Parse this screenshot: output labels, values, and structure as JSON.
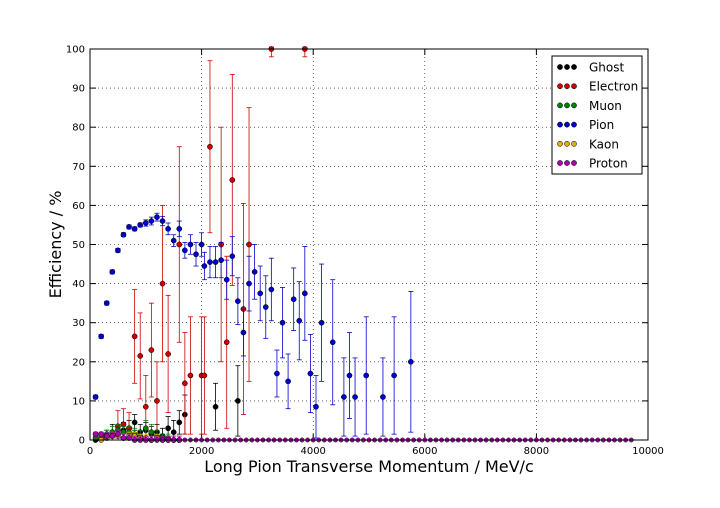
{
  "chart_data": {
    "type": "scatter",
    "title": "",
    "xlabel": "Long Pion Transverse Momentum / MeV/c",
    "ylabel": "Efficiency / %",
    "xlim": [
      0,
      10000
    ],
    "ylim": [
      0,
      100
    ],
    "xticks": [
      0,
      2000,
      4000,
      6000,
      8000,
      10000
    ],
    "yticks": [
      0,
      10,
      20,
      30,
      40,
      50,
      60,
      70,
      80,
      90,
      100
    ],
    "xtick_labels": [
      "0",
      "2000",
      "4000",
      "6000",
      "8000",
      "10000"
    ],
    "ytick_labels": [
      "0",
      "10",
      "20",
      "30",
      "40",
      "50",
      "60",
      "70",
      "80",
      "90",
      "100"
    ],
    "grid": true,
    "legend_position": "top-right",
    "zero_floor": {
      "x_from": 1700,
      "x_to": 9700,
      "x_step": 100
    },
    "series": [
      {
        "name": "Ghost",
        "color": "#000000",
        "points": [
          {
            "x": 100,
            "y": 0,
            "err": 0.5
          },
          {
            "x": 200,
            "y": 0.5,
            "err": 1
          },
          {
            "x": 300,
            "y": 1,
            "err": 1.5
          },
          {
            "x": 400,
            "y": 2,
            "err": 2
          },
          {
            "x": 500,
            "y": 1.5,
            "err": 1.5
          },
          {
            "x": 600,
            "y": 2.5,
            "err": 2
          },
          {
            "x": 700,
            "y": 3,
            "err": 2
          },
          {
            "x": 800,
            "y": 4.5,
            "err": 2
          },
          {
            "x": 900,
            "y": 2,
            "err": 2
          },
          {
            "x": 1000,
            "y": 2.5,
            "err": 2
          },
          {
            "x": 1100,
            "y": 1.5,
            "err": 2
          },
          {
            "x": 1200,
            "y": 2,
            "err": 2
          },
          {
            "x": 1300,
            "y": 1,
            "err": 2
          },
          {
            "x": 1400,
            "y": 3,
            "err": 3
          },
          {
            "x": 1500,
            "y": 2,
            "err": 3
          },
          {
            "x": 1600,
            "y": 4.5,
            "err": 3
          },
          {
            "x": 1700,
            "y": 6.5,
            "err": 5
          },
          {
            "x": 2250,
            "y": 8.5,
            "err": 6
          },
          {
            "x": 2650,
            "y": 10,
            "err": 9
          }
        ]
      },
      {
        "name": "Electron",
        "color": "#cc0000",
        "points": [
          {
            "x": 500,
            "y": 3.5,
            "err": 4
          },
          {
            "x": 600,
            "y": 4,
            "err": 4
          },
          {
            "x": 700,
            "y": 3,
            "err": 4
          },
          {
            "x": 800,
            "y": 26.5,
            "err": 12
          },
          {
            "x": 900,
            "y": 21.5,
            "err": 11
          },
          {
            "x": 1000,
            "y": 8.5,
            "err": 8
          },
          {
            "x": 1100,
            "y": 23,
            "err": 12
          },
          {
            "x": 1200,
            "y": 10,
            "err": 10
          },
          {
            "x": 1300,
            "y": 40,
            "err": 20
          },
          {
            "x": 1400,
            "y": 22,
            "err": 15
          },
          {
            "x": 1600,
            "y": 50,
            "err": 25
          },
          {
            "x": 1700,
            "y": 14.5,
            "err": 13
          },
          {
            "x": 1800,
            "y": 16.5,
            "err": 15
          },
          {
            "x": 2000,
            "y": 16.5,
            "err": 15
          },
          {
            "x": 2050,
            "y": 16.5,
            "err": 15
          },
          {
            "x": 2150,
            "y": 75,
            "err": 22
          },
          {
            "x": 2350,
            "y": 50,
            "err": 30
          },
          {
            "x": 2450,
            "y": 25,
            "err": 22
          },
          {
            "x": 2550,
            "y": 66.5,
            "err": 27
          },
          {
            "x": 2750,
            "y": 33.5,
            "err": 27
          },
          {
            "x": 2850,
            "y": 50,
            "err": 35
          },
          {
            "x": 3250,
            "y": 100,
            "err": 2
          },
          {
            "x": 3850,
            "y": 100,
            "err": 2
          }
        ]
      },
      {
        "name": "Muon",
        "color": "#008000",
        "points": [
          {
            "x": 100,
            "y": 0.5,
            "err": 0.5
          },
          {
            "x": 200,
            "y": 1,
            "err": 1
          },
          {
            "x": 300,
            "y": 1.5,
            "err": 1
          },
          {
            "x": 400,
            "y": 2,
            "err": 1.5
          },
          {
            "x": 500,
            "y": 2.5,
            "err": 1.5
          },
          {
            "x": 600,
            "y": 2,
            "err": 1.5
          },
          {
            "x": 700,
            "y": 2,
            "err": 1.5
          },
          {
            "x": 800,
            "y": 1.5,
            "err": 1.5
          },
          {
            "x": 900,
            "y": 1,
            "err": 1.5
          },
          {
            "x": 1000,
            "y": 3,
            "err": 2
          },
          {
            "x": 1100,
            "y": 2,
            "err": 2
          },
          {
            "x": 1200,
            "y": 1,
            "err": 1.5
          },
          {
            "x": 1300,
            "y": 0.5,
            "err": 1
          },
          {
            "x": 1400,
            "y": 0.5,
            "err": 1
          }
        ]
      },
      {
        "name": "Pion",
        "color": "#0000cc",
        "points": [
          {
            "x": 100,
            "y": 11,
            "err": 0.5
          },
          {
            "x": 200,
            "y": 26.5,
            "err": 0.5
          },
          {
            "x": 300,
            "y": 35,
            "err": 0.5
          },
          {
            "x": 400,
            "y": 43,
            "err": 0.5
          },
          {
            "x": 500,
            "y": 48.5,
            "err": 0.5
          },
          {
            "x": 600,
            "y": 52.5,
            "err": 0.5
          },
          {
            "x": 700,
            "y": 54.5,
            "err": 0.5
          },
          {
            "x": 800,
            "y": 54,
            "err": 0.5
          },
          {
            "x": 900,
            "y": 55,
            "err": 0.5
          },
          {
            "x": 1000,
            "y": 55.5,
            "err": 0.8
          },
          {
            "x": 1100,
            "y": 56,
            "err": 1
          },
          {
            "x": 1200,
            "y": 57,
            "err": 1
          },
          {
            "x": 1300,
            "y": 56,
            "err": 1.2
          },
          {
            "x": 1400,
            "y": 54,
            "err": 1.5
          },
          {
            "x": 1500,
            "y": 51,
            "err": 1.5
          },
          {
            "x": 1600,
            "y": 54,
            "err": 2
          },
          {
            "x": 1700,
            "y": 48.5,
            "err": 2
          },
          {
            "x": 1800,
            "y": 50,
            "err": 2.5
          },
          {
            "x": 1900,
            "y": 47.5,
            "err": 3
          },
          {
            "x": 2000,
            "y": 50,
            "err": 3
          },
          {
            "x": 2050,
            "y": 44.5,
            "err": 3.5
          },
          {
            "x": 2150,
            "y": 45.5,
            "err": 4
          },
          {
            "x": 2250,
            "y": 45.5,
            "err": 4
          },
          {
            "x": 2350,
            "y": 46,
            "err": 4.5
          },
          {
            "x": 2450,
            "y": 41,
            "err": 5
          },
          {
            "x": 2550,
            "y": 47,
            "err": 5
          },
          {
            "x": 2650,
            "y": 35.5,
            "err": 6
          },
          {
            "x": 2750,
            "y": 27.5,
            "err": 6
          },
          {
            "x": 2850,
            "y": 40,
            "err": 7
          },
          {
            "x": 2950,
            "y": 43,
            "err": 7
          },
          {
            "x": 3050,
            "y": 37.5,
            "err": 7
          },
          {
            "x": 3150,
            "y": 34,
            "err": 8
          },
          {
            "x": 3250,
            "y": 38.5,
            "err": 8
          },
          {
            "x": 3350,
            "y": 17,
            "err": 6
          },
          {
            "x": 3450,
            "y": 30,
            "err": 9
          },
          {
            "x": 3550,
            "y": 15,
            "err": 7
          },
          {
            "x": 3650,
            "y": 36,
            "err": 8
          },
          {
            "x": 3750,
            "y": 30.5,
            "err": 10
          },
          {
            "x": 3850,
            "y": 37.5,
            "err": 12
          },
          {
            "x": 3950,
            "y": 17,
            "err": 10
          },
          {
            "x": 4050,
            "y": 8.5,
            "err": 8
          },
          {
            "x": 4150,
            "y": 30,
            "err": 15
          },
          {
            "x": 4350,
            "y": 25,
            "err": 16
          },
          {
            "x": 4550,
            "y": 11,
            "err": 10
          },
          {
            "x": 4650,
            "y": 16.5,
            "err": 11
          },
          {
            "x": 4750,
            "y": 11,
            "err": 10
          },
          {
            "x": 4950,
            "y": 16.5,
            "err": 15
          },
          {
            "x": 5250,
            "y": 11,
            "err": 10
          },
          {
            "x": 5450,
            "y": 16.5,
            "err": 15
          },
          {
            "x": 5750,
            "y": 20,
            "err": 18
          }
        ]
      },
      {
        "name": "Kaon",
        "color": "#e0b000",
        "points": [
          {
            "x": 200,
            "y": 0,
            "err": 0.5
          },
          {
            "x": 300,
            "y": 0.5,
            "err": 0.5
          },
          {
            "x": 400,
            "y": 1,
            "err": 1
          },
          {
            "x": 500,
            "y": 1,
            "err": 1
          },
          {
            "x": 600,
            "y": 0.5,
            "err": 1
          },
          {
            "x": 700,
            "y": 1,
            "err": 1
          },
          {
            "x": 800,
            "y": 1,
            "err": 1
          },
          {
            "x": 900,
            "y": 0.5,
            "err": 1
          },
          {
            "x": 1000,
            "y": 0.5,
            "err": 1
          },
          {
            "x": 1100,
            "y": 0,
            "err": 1
          },
          {
            "x": 1200,
            "y": 0.5,
            "err": 1
          },
          {
            "x": 1300,
            "y": 0,
            "err": 1
          },
          {
            "x": 1400,
            "y": 0,
            "err": 1
          },
          {
            "x": 1500,
            "y": 0,
            "err": 1
          },
          {
            "x": 1600,
            "y": 0,
            "err": 1
          }
        ]
      },
      {
        "name": "Proton",
        "color": "#aa00aa",
        "points": [
          {
            "x": 100,
            "y": 1.5,
            "err": 0.5
          },
          {
            "x": 200,
            "y": 1.5,
            "err": 0.5
          },
          {
            "x": 300,
            "y": 1,
            "err": 0.8
          },
          {
            "x": 400,
            "y": 1,
            "err": 1
          },
          {
            "x": 500,
            "y": 1.5,
            "err": 1
          },
          {
            "x": 600,
            "y": 0.5,
            "err": 1
          },
          {
            "x": 700,
            "y": 0.5,
            "err": 1
          },
          {
            "x": 800,
            "y": 0,
            "err": 1
          },
          {
            "x": 900,
            "y": 0,
            "err": 1
          },
          {
            "x": 1000,
            "y": 0,
            "err": 1
          },
          {
            "x": 1100,
            "y": 0,
            "err": 1
          },
          {
            "x": 1200,
            "y": 0,
            "err": 1
          },
          {
            "x": 1300,
            "y": 0,
            "err": 1
          },
          {
            "x": 1400,
            "y": 0,
            "err": 1
          },
          {
            "x": 1500,
            "y": 0,
            "err": 1
          },
          {
            "x": 1600,
            "y": 0,
            "err": 1
          }
        ]
      }
    ]
  }
}
